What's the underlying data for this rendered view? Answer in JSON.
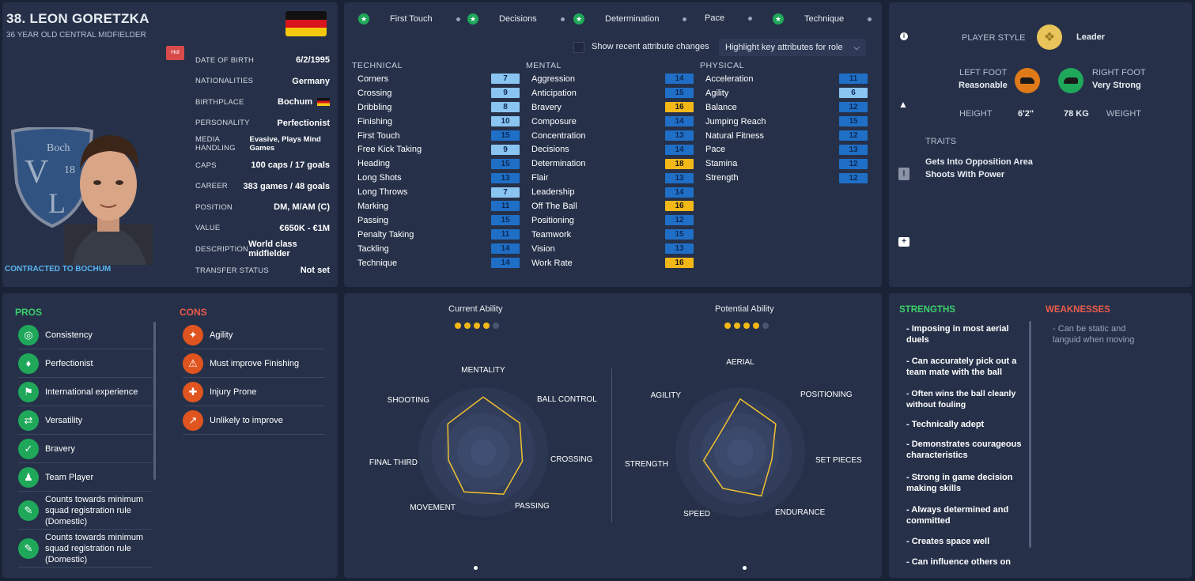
{
  "player": {
    "name": "38. LEON GORETZKA",
    "subtitle": "36 YEAR OLD  CENTRAL MIDFIELDER",
    "role_badge": "Hol",
    "contract": "CONTRACTED TO BOCHUM",
    "club_logo_text": "VfL Bochum 1848"
  },
  "info": [
    {
      "label": "DATE OF BIRTH",
      "value": "6/2/1995"
    },
    {
      "label": "NATIONALITIES",
      "value": "Germany"
    },
    {
      "label": "BIRTHPLACE",
      "value": "Bochum"
    },
    {
      "label": "PERSONALITY",
      "value": "Perfectionist"
    },
    {
      "label": "MEDIA HANDLING",
      "value": "Evasive, Plays Mind Games"
    },
    {
      "label": "CAPS",
      "value": "100 caps / 17 goals"
    },
    {
      "label": "CAREER",
      "value": "383  games /  48  goals"
    },
    {
      "label": "POSITION",
      "value": "DM, M/AM (C)"
    },
    {
      "label": "VALUE",
      "value": "€650K - €1M"
    },
    {
      "label": "DESCRIPTION",
      "value": "World class midfielder"
    },
    {
      "label": "TRANSFER STATUS",
      "value": "Not set"
    }
  ],
  "key_attrs": [
    {
      "label": "First Touch",
      "starred": true
    },
    {
      "label": "Decisions",
      "starred": true
    },
    {
      "label": "Determination",
      "starred": true
    },
    {
      "label": "Pace",
      "starred": false
    },
    {
      "label": "Technique",
      "starred": true
    }
  ],
  "controls": {
    "show_recent": "Show recent attribute changes",
    "highlight": "Highlight key attributes for role"
  },
  "attributes": {
    "technical": {
      "title": "TECHNICAL",
      "rows": [
        {
          "name": "Corners",
          "value": "7"
        },
        {
          "name": "Crossing",
          "value": "9"
        },
        {
          "name": "Dribbling",
          "value": "8"
        },
        {
          "name": "Finishing",
          "value": "10"
        },
        {
          "name": "First Touch",
          "value": "15"
        },
        {
          "name": "Free Kick Taking",
          "value": "9"
        },
        {
          "name": "Heading",
          "value": "15"
        },
        {
          "name": "Long Shots",
          "value": "13"
        },
        {
          "name": "Long Throws",
          "value": "7"
        },
        {
          "name": "Marking",
          "value": "11"
        },
        {
          "name": "Passing",
          "value": "15"
        },
        {
          "name": "Penalty Taking",
          "value": "11"
        },
        {
          "name": "Tackling",
          "value": "14"
        },
        {
          "name": "Technique",
          "value": "14"
        }
      ]
    },
    "mental": {
      "title": "MENTAL",
      "rows": [
        {
          "name": "Aggression",
          "value": "14"
        },
        {
          "name": "Anticipation",
          "value": "15"
        },
        {
          "name": "Bravery",
          "value": "16"
        },
        {
          "name": "Composure",
          "value": "14"
        },
        {
          "name": "Concentration",
          "value": "13"
        },
        {
          "name": "Decisions",
          "value": "14"
        },
        {
          "name": "Determination",
          "value": "18"
        },
        {
          "name": "Flair",
          "value": "13"
        },
        {
          "name": "Leadership",
          "value": "14"
        },
        {
          "name": "Off The Ball",
          "value": "16"
        },
        {
          "name": "Positioning",
          "value": "12"
        },
        {
          "name": "Teamwork",
          "value": "15"
        },
        {
          "name": "Vision",
          "value": "13"
        },
        {
          "name": "Work Rate",
          "value": "16"
        }
      ]
    },
    "physical": {
      "title": "PHYSICAL",
      "rows": [
        {
          "name": "Acceleration",
          "value": "11"
        },
        {
          "name": "Agility",
          "value": "6"
        },
        {
          "name": "Balance",
          "value": "12"
        },
        {
          "name": "Jumping Reach",
          "value": "15"
        },
        {
          "name": "Natural Fitness",
          "value": "12"
        },
        {
          "name": "Pace",
          "value": "13"
        },
        {
          "name": "Stamina",
          "value": "12"
        },
        {
          "name": "Strength",
          "value": "12"
        }
      ]
    }
  },
  "style": {
    "label": "PLAYER STYLE",
    "value": "Leader",
    "left_foot_label": "LEFT FOOT",
    "left_foot_value": "Reasonable",
    "right_foot_label": "RIGHT FOOT",
    "right_foot_value": "Very Strong",
    "height_label": "HEIGHT",
    "height_value": "6'2\"",
    "weight_value": "78 KG",
    "weight_label": "WEIGHT",
    "traits_label": "TRAITS",
    "traits": [
      "Gets Into Opposition Area",
      "Shoots With Power"
    ]
  },
  "pros": {
    "title": "PROS",
    "items": [
      "Consistency",
      "Perfectionist",
      "International experience",
      "Versatility",
      "Bravery",
      "Team Player",
      "Counts towards minimum squad registration rule (Domestic)",
      "Counts towards minimum squad registration rule (Domestic)"
    ]
  },
  "cons": {
    "title": "CONS",
    "items": [
      "Agility",
      "Must improve Finishing",
      "Injury Prone",
      "Unlikely to improve"
    ]
  },
  "ability": {
    "current_label": "Current Ability",
    "current_stars": 4,
    "potential_label": "Potential Ability",
    "potential_stars": 4,
    "max_stars": 5
  },
  "radar_left": {
    "axes": [
      "MENTALITY",
      "BALL CONTROL",
      "CROSSING",
      "PASSING",
      "MOVEMENT",
      "FINAL THIRD",
      "SHOOTING"
    ],
    "values": [
      0.85,
      0.72,
      0.62,
      0.72,
      0.68,
      0.55,
      0.7
    ]
  },
  "radar_right": {
    "axes": [
      "AERIAL",
      "POSITIONING",
      "SET PIECES",
      "ENDURANCE",
      "SPEED",
      "STRENGTH",
      "AGILITY"
    ],
    "values": [
      0.82,
      0.7,
      0.5,
      0.75,
      0.62,
      0.58,
      0.42
    ]
  },
  "strengths": {
    "title": "STRENGTHS",
    "items": [
      "- Imposing in most aerial duels",
      "- Can accurately pick out a team mate with the ball",
      "- Often wins the ball cleanly without fouling",
      "- Technically adept",
      "- Demonstrates courageous characteristics",
      "- Strong in game decision making skills",
      "- Always determined and committed",
      "- Creates space well",
      "- Can influence others on"
    ]
  },
  "weaknesses": {
    "title": "WEAKNESSES",
    "items": [
      "- Can be static and languid when moving"
    ]
  },
  "colors": {
    "accent_green": "#1fa85a",
    "accent_red": "#e0541f",
    "gold": "#f2b818",
    "panel": "#263149"
  }
}
